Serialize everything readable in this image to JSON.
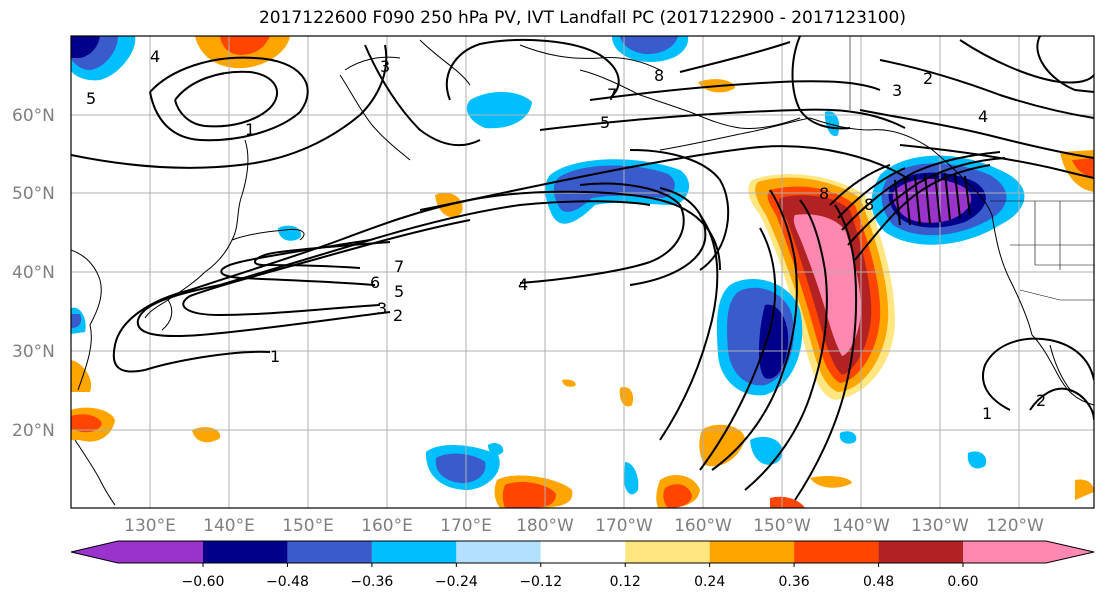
{
  "title": "2017122600 F090 250 hPa PV, IVT Landfall PC (2017122900 - 2017123100)",
  "map": {
    "lat_labels": [
      "60°N",
      "50°N",
      "40°N",
      "30°N",
      "20°N"
    ],
    "lon_labels": [
      "130°E",
      "140°E",
      "150°E",
      "160°E",
      "170°E",
      "180°W",
      "170°W",
      "160°W",
      "150°W",
      "140°W",
      "130°W",
      "120°W"
    ],
    "pv_contour_labels": [
      "1",
      "2",
      "3",
      "4",
      "5",
      "6",
      "7",
      "8"
    ]
  },
  "colorbar": {
    "ticks": [
      "−0.60",
      "−0.48",
      "−0.36",
      "−0.24",
      "−0.12",
      "0.12",
      "0.24",
      "0.36",
      "0.48",
      "0.60"
    ],
    "colors": [
      "#9933cc",
      "#00008b",
      "#3a5bcc",
      "#00bfff",
      "#b3e0ff",
      "#ffffff",
      "#ffe680",
      "#ffa500",
      "#ff4500",
      "#b22222",
      "#ff88b0"
    ]
  },
  "colors": {
    "contour": "#000000",
    "grid": "#b0b0b0",
    "coast": "#000000"
  }
}
